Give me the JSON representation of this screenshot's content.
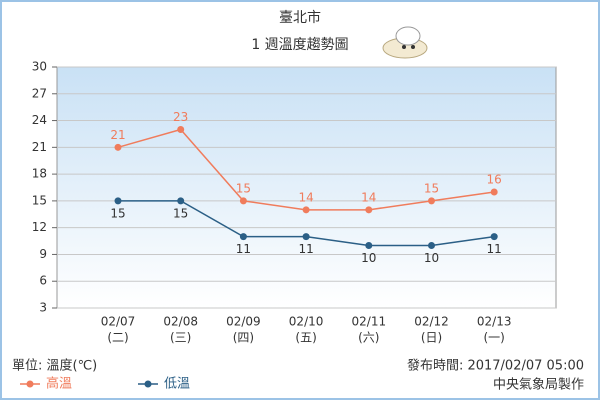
{
  "chart_data": {
    "type": "line",
    "title": "臺北市",
    "subtitle": "1 週溫度趨勢圖",
    "categories": [
      "02/07",
      "02/08",
      "02/09",
      "02/10",
      "02/11",
      "02/12",
      "02/13"
    ],
    "weekdays": [
      "(二)",
      "(三)",
      "(四)",
      "(五)",
      "(六)",
      "(日)",
      "(一)"
    ],
    "series": [
      {
        "name": "高溫",
        "color": "#f07c5c",
        "values": [
          21,
          23,
          15,
          14,
          14,
          15,
          16
        ]
      },
      {
        "name": "低溫",
        "color": "#2b5f86",
        "values": [
          15,
          15,
          11,
          11,
          10,
          10,
          11
        ]
      }
    ],
    "ylim": [
      3,
      30
    ],
    "yticks": [
      3,
      6,
      9,
      12,
      15,
      18,
      21,
      24,
      27,
      30
    ],
    "grid": true,
    "unit": "單位: 溫度(℃)",
    "issued": "發布時間: 2017/02/07 05:00",
    "credit": "中央氣象局製作"
  }
}
